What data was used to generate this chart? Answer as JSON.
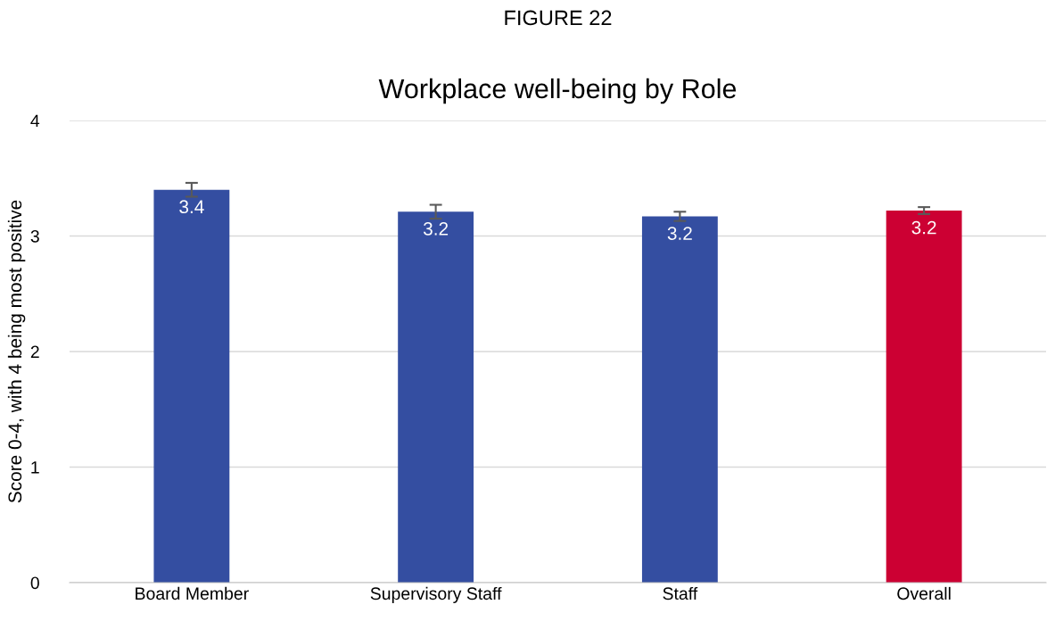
{
  "chart_data": {
    "type": "bar",
    "title": "Workplace well-being by Role",
    "subtitle": "FIGURE 22",
    "ylabel": "Score 0-4, with 4 being most positive",
    "categories": [
      "Board Member",
      "Supervisory Staff",
      "Staff",
      "Overall"
    ],
    "values": [
      3.4,
      3.21,
      3.17,
      3.22
    ],
    "colors": [
      "#344ea1",
      "#344ea1",
      "#344ea1",
      "#cc0033"
    ],
    "errors": [
      0.06,
      0.06,
      0.04,
      0.03
    ],
    "value_labels": [
      "3.4",
      "3.2",
      "3.2",
      "3.2"
    ],
    "ylim": [
      0,
      4
    ],
    "yticks": [
      0,
      1,
      2,
      3,
      4
    ],
    "grid": "y",
    "legend": false
  }
}
